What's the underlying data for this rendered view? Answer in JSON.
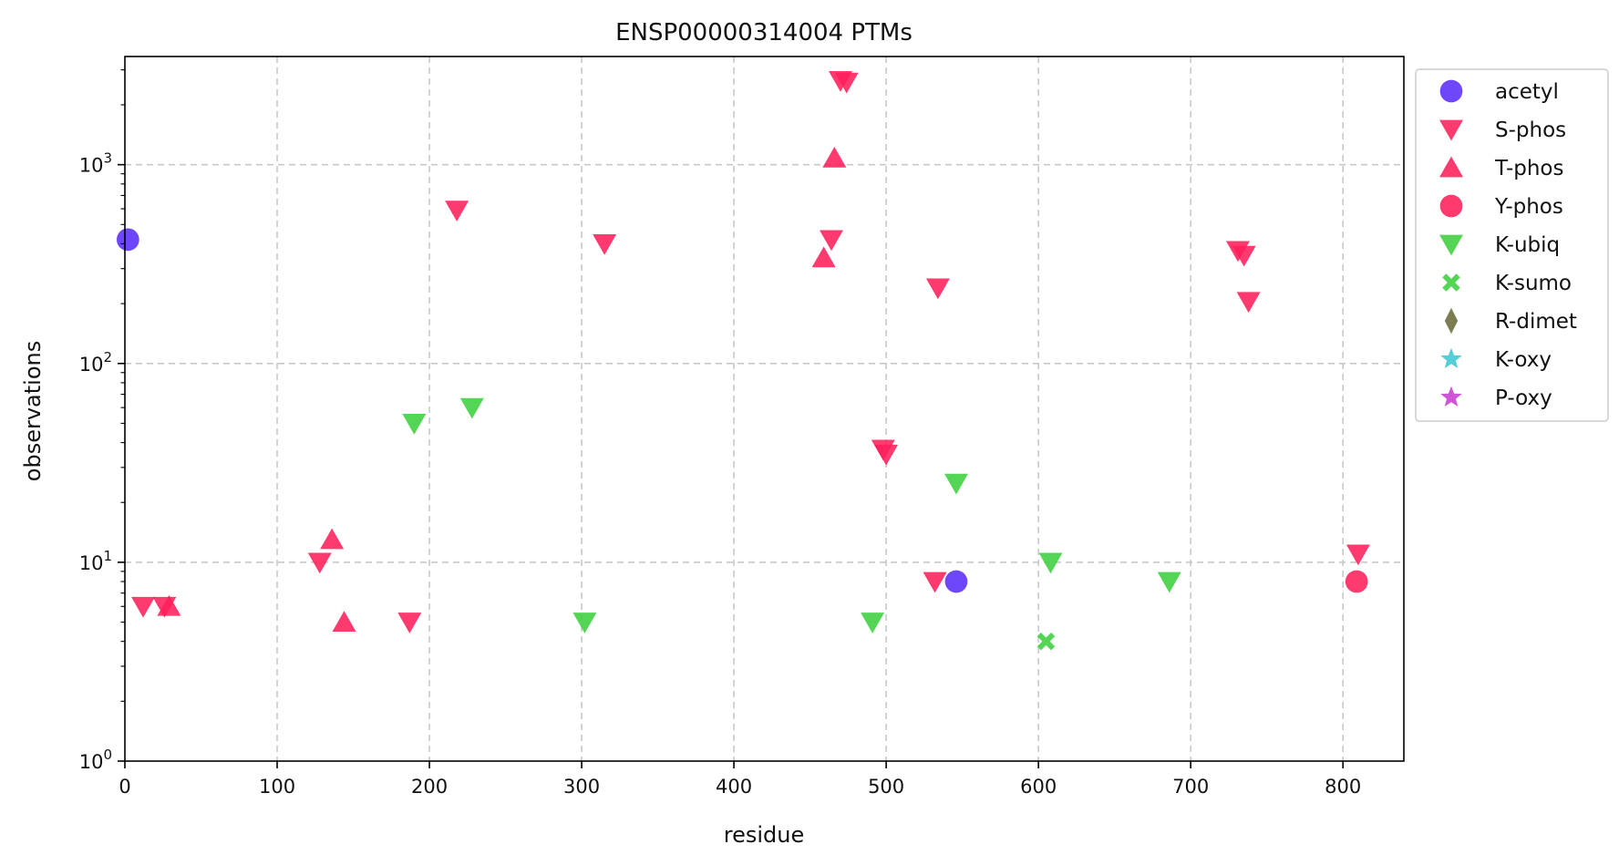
{
  "chart_data": {
    "type": "scatter",
    "title": "ENSP00000314004 PTMs",
    "xlabel": "residue",
    "ylabel": "observations",
    "xlim": [
      0,
      840
    ],
    "ylim": [
      1,
      3500
    ],
    "yscale": "log",
    "grid": true,
    "legend_position": "outside-top-right",
    "x_ticks": [
      0,
      100,
      200,
      300,
      400,
      500,
      600,
      700,
      800
    ],
    "y_ticks": [
      {
        "value": 1,
        "base": "10",
        "exp": "0"
      },
      {
        "value": 10,
        "base": "10",
        "exp": "1"
      },
      {
        "value": 100,
        "base": "10",
        "exp": "2"
      },
      {
        "value": 1000,
        "base": "10",
        "exp": "3"
      }
    ],
    "series": [
      {
        "name": "acetyl",
        "marker": "circle",
        "color": "#5a2dfa",
        "points": [
          {
            "x": 2,
            "y": 420
          },
          {
            "x": 546,
            "y": 8
          }
        ]
      },
      {
        "name": "S-phos",
        "marker": "triangle-down",
        "color": "#ff1f5a",
        "points": [
          {
            "x": 12,
            "y": 6
          },
          {
            "x": 26,
            "y": 6
          },
          {
            "x": 128,
            "y": 10
          },
          {
            "x": 187,
            "y": 5
          },
          {
            "x": 218,
            "y": 590
          },
          {
            "x": 315,
            "y": 400
          },
          {
            "x": 464,
            "y": 420
          },
          {
            "x": 470,
            "y": 2650
          },
          {
            "x": 474,
            "y": 2600
          },
          {
            "x": 498,
            "y": 37
          },
          {
            "x": 500,
            "y": 35
          },
          {
            "x": 532,
            "y": 8
          },
          {
            "x": 534,
            "y": 240
          },
          {
            "x": 731,
            "y": 370
          },
          {
            "x": 735,
            "y": 350
          },
          {
            "x": 738,
            "y": 205
          },
          {
            "x": 810,
            "y": 11
          }
        ]
      },
      {
        "name": "T-phos",
        "marker": "triangle-up",
        "color": "#ff1f5a",
        "points": [
          {
            "x": 29,
            "y": 6
          },
          {
            "x": 136,
            "y": 13
          },
          {
            "x": 144,
            "y": 5
          },
          {
            "x": 459,
            "y": 340
          },
          {
            "x": 466,
            "y": 1080
          }
        ]
      },
      {
        "name": "Y-phos",
        "marker": "circle",
        "color": "#ff1f5a",
        "points": [
          {
            "x": 809,
            "y": 8
          }
        ]
      },
      {
        "name": "K-ubiq",
        "marker": "triangle-down",
        "color": "#3ecf3e",
        "points": [
          {
            "x": 190,
            "y": 50
          },
          {
            "x": 228,
            "y": 60
          },
          {
            "x": 302,
            "y": 5
          },
          {
            "x": 491,
            "y": 5
          },
          {
            "x": 546,
            "y": 25
          },
          {
            "x": 608,
            "y": 10
          },
          {
            "x": 686,
            "y": 8
          }
        ]
      },
      {
        "name": "K-sumo",
        "marker": "x",
        "color": "#3ecf3e",
        "points": [
          {
            "x": 605,
            "y": 4
          }
        ]
      },
      {
        "name": "R-dimet",
        "marker": "diamond",
        "color": "#6b6b3a",
        "points": []
      },
      {
        "name": "K-oxy",
        "marker": "star",
        "color": "#3cc8d0",
        "points": []
      },
      {
        "name": "P-oxy",
        "marker": "star",
        "color": "#c83cd0",
        "points": []
      }
    ]
  }
}
